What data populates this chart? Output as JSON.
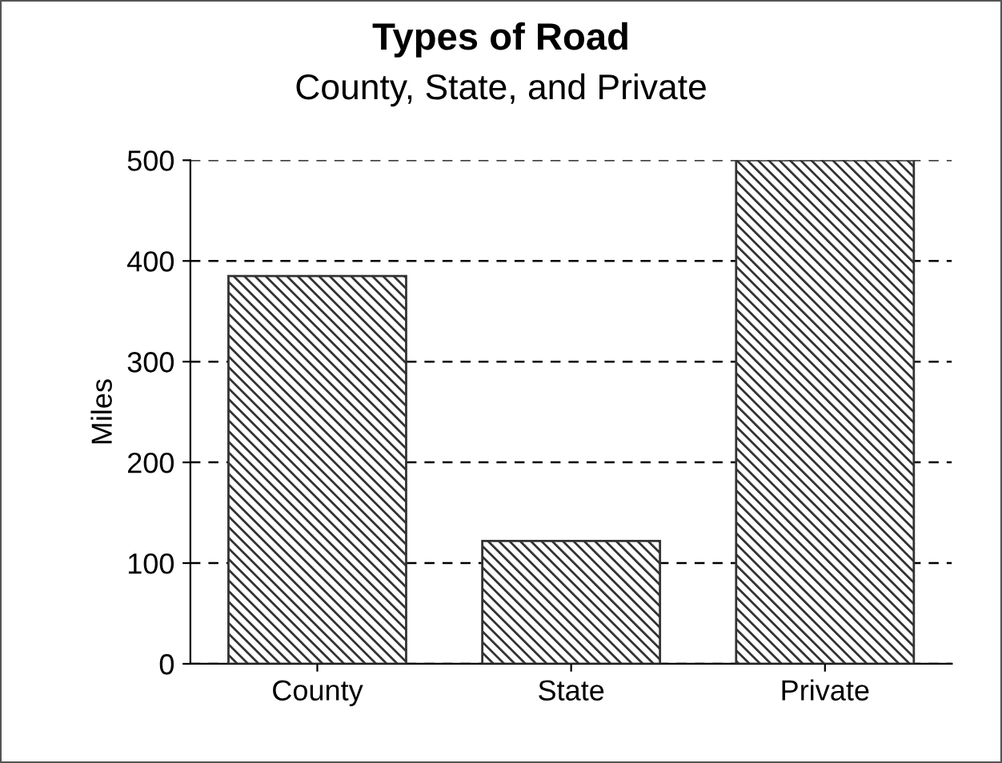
{
  "chart_data": {
    "type": "bar",
    "title": "Types of Road",
    "subtitle": "County, State, and Private",
    "ylabel": "Miles",
    "categories": [
      "County",
      "State",
      "Private"
    ],
    "values": [
      385,
      122,
      500
    ],
    "color": "#333333",
    "ylim": [
      0,
      500
    ],
    "yticks": [
      0,
      100,
      200,
      300,
      400,
      500
    ],
    "grid": "y",
    "line_style": "dashed"
  }
}
